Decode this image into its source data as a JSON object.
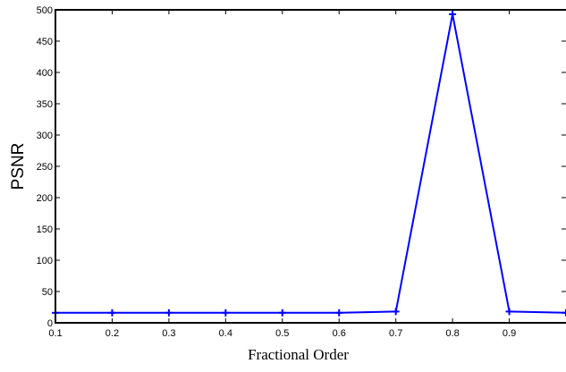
{
  "chart_data": {
    "type": "line",
    "title": "",
    "xlabel": "Fractional Order",
    "ylabel": "PSNR",
    "xlim": [
      0.1,
      1.0
    ],
    "ylim": [
      0,
      500
    ],
    "x_ticks": [
      "0.1",
      "0.2",
      "0.3",
      "0.4",
      "0.5",
      "0.6",
      "0.7",
      "0.8",
      "0.9"
    ],
    "y_ticks": [
      "0",
      "50",
      "100",
      "150",
      "200",
      "250",
      "300",
      "350",
      "400",
      "450",
      "500"
    ],
    "grid": false,
    "series": [
      {
        "color": "#0000ff",
        "marker": "plus",
        "x": [
          0.1,
          0.2,
          0.3,
          0.4,
          0.5,
          0.6,
          0.7,
          0.8,
          0.9,
          1.0
        ],
        "y": [
          16,
          16,
          16,
          16,
          16,
          16,
          18,
          493,
          18,
          16
        ]
      }
    ]
  }
}
